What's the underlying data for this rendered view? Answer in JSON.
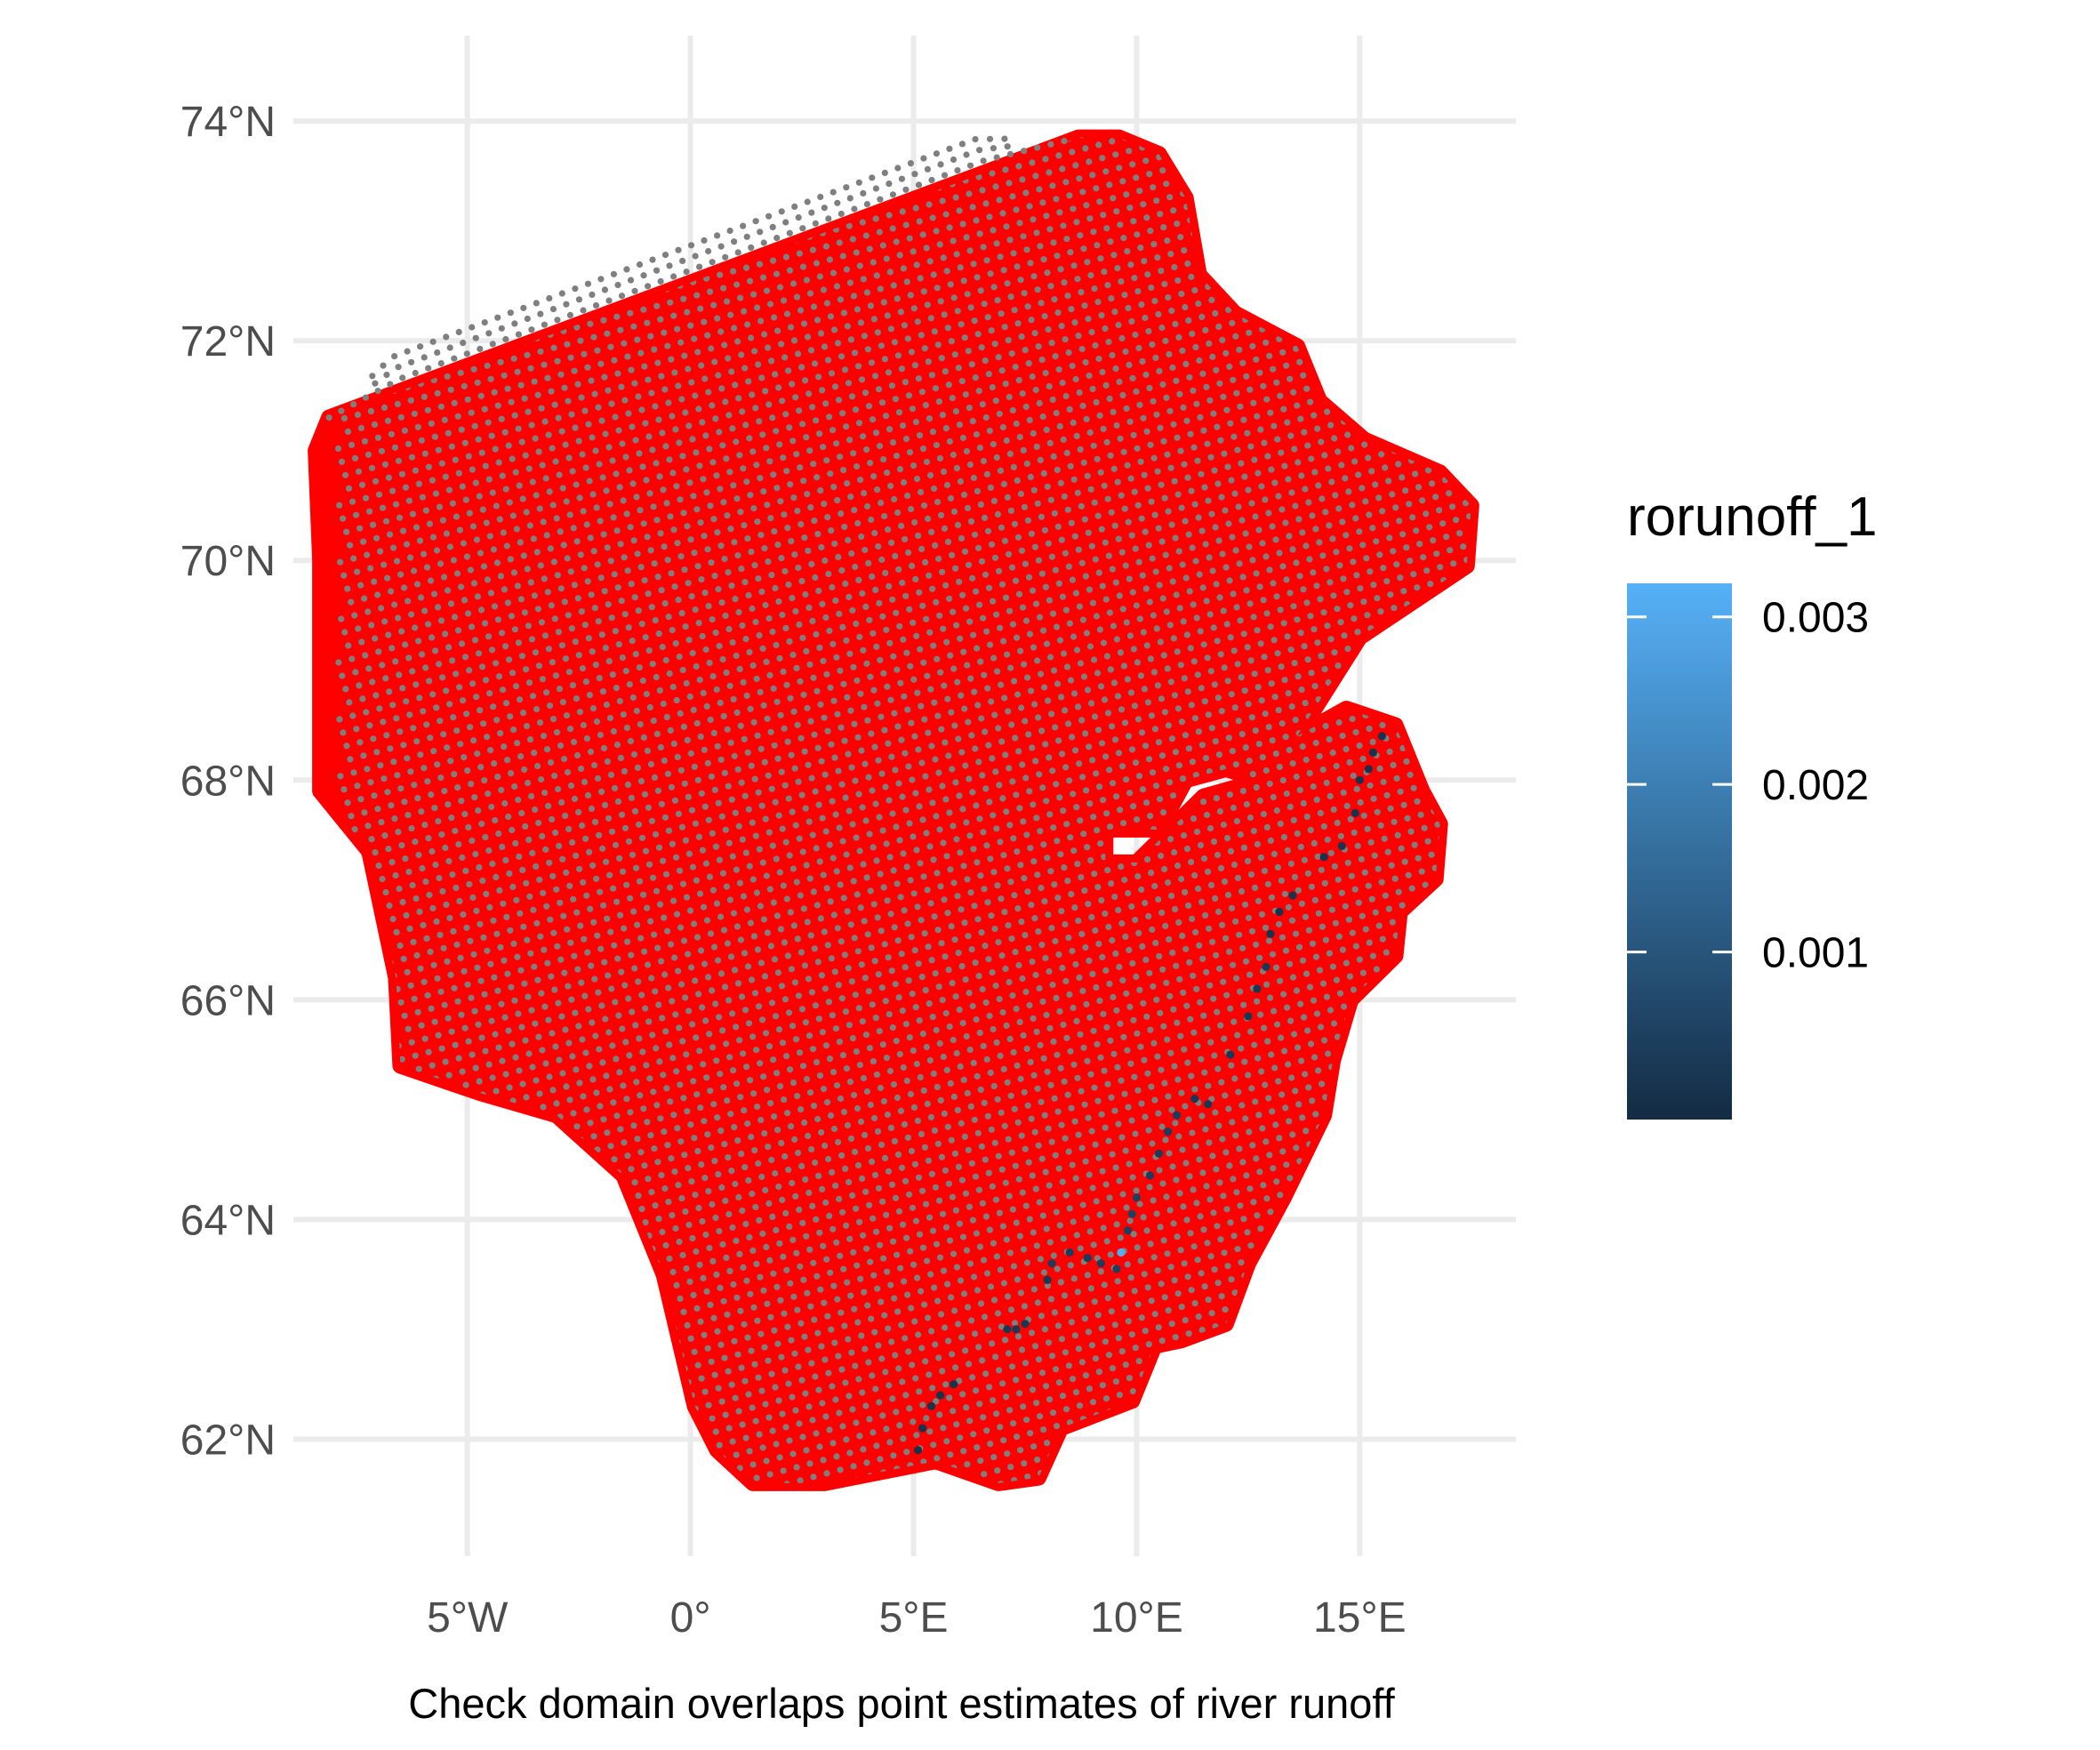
{
  "chart_data": {
    "type": "scatter",
    "xlabel": "Check domain overlaps point estimates of river runoff",
    "ylabel": "",
    "xlim": [
      -8.7,
      18.5
    ],
    "ylim": [
      61.0,
      74.6
    ],
    "x_ticks": [
      {
        "value": -5,
        "label": "5°W"
      },
      {
        "value": 0,
        "label": "0°"
      },
      {
        "value": 5,
        "label": "5°E"
      },
      {
        "value": 10,
        "label": "10°E"
      },
      {
        "value": 15,
        "label": "15°E"
      }
    ],
    "y_ticks": [
      {
        "value": 62,
        "label": "62°N"
      },
      {
        "value": 64,
        "label": "64°N"
      },
      {
        "value": 66,
        "label": "66°N"
      },
      {
        "value": 68,
        "label": "68°N"
      },
      {
        "value": 70,
        "label": "70°N"
      },
      {
        "value": 72,
        "label": "72°N"
      },
      {
        "value": 74,
        "label": "74°N"
      }
    ],
    "grid": true,
    "domain": {
      "fill": "#ff0000",
      "outline": [
        [
          -8.1,
          71.3
        ],
        [
          8.7,
          73.85
        ],
        [
          9.6,
          73.85
        ],
        [
          10.5,
          73.7
        ],
        [
          11.1,
          73.3
        ],
        [
          11.4,
          72.6
        ],
        [
          12.2,
          72.25
        ],
        [
          13.6,
          71.95
        ],
        [
          14.1,
          71.45
        ],
        [
          15.1,
          71.1
        ],
        [
          16.8,
          70.8
        ],
        [
          17.5,
          70.5
        ],
        [
          17.4,
          69.95
        ],
        [
          15.0,
          69.3
        ],
        [
          13.6,
          68.4
        ],
        [
          14.7,
          68.65
        ],
        [
          15.8,
          68.5
        ],
        [
          16.4,
          67.9
        ],
        [
          16.8,
          67.6
        ],
        [
          16.7,
          67.1
        ],
        [
          15.9,
          66.8
        ],
        [
          15.8,
          66.4
        ],
        [
          14.8,
          66.0
        ],
        [
          14.4,
          65.45
        ],
        [
          14.2,
          64.95
        ],
        [
          13.3,
          64.2
        ],
        [
          12.5,
          63.6
        ],
        [
          12.0,
          63.05
        ],
        [
          11.0,
          62.9
        ],
        [
          10.4,
          62.85
        ],
        [
          9.9,
          62.35
        ],
        [
          8.3,
          62.1
        ],
        [
          7.8,
          61.65
        ],
        [
          6.9,
          61.6
        ],
        [
          5.5,
          61.8
        ],
        [
          3.0,
          61.6
        ],
        [
          1.4,
          61.6
        ],
        [
          0.6,
          61.9
        ],
        [
          0.1,
          62.3
        ],
        [
          -0.6,
          63.5
        ],
        [
          -1.5,
          64.4
        ],
        [
          -3.0,
          64.95
        ],
        [
          -4.7,
          65.15
        ],
        [
          -6.5,
          65.4
        ],
        [
          -6.6,
          66.2
        ],
        [
          -7.2,
          67.35
        ],
        [
          -8.3,
          67.9
        ],
        [
          -8.3,
          70.0
        ],
        [
          -8.4,
          71.0
        ]
      ],
      "hole": [
        [
          9.3,
          67.55
        ],
        [
          10.5,
          67.55
        ],
        [
          11.1,
          68.0
        ],
        [
          12.0,
          68.1
        ],
        [
          12.8,
          68.0
        ],
        [
          11.5,
          67.85
        ],
        [
          10.0,
          67.25
        ],
        [
          9.3,
          67.25
        ]
      ]
    },
    "grid_points": {
      "color": "#7f7f7f",
      "spacing_lon": 0.35,
      "spacing_lat": 0.2,
      "rotation_deg": 15,
      "extra_band_northwest": true
    },
    "series": [
      {
        "name": "rorunoff_1",
        "points": [
          [
            5.1,
            61.9
          ],
          [
            5.2,
            62.1
          ],
          [
            5.4,
            62.3
          ],
          [
            5.6,
            62.4
          ],
          [
            5.9,
            62.5
          ],
          [
            7.1,
            63.0
          ],
          [
            7.3,
            63.0
          ],
          [
            7.5,
            63.05
          ],
          [
            8.0,
            63.45
          ],
          [
            8.1,
            63.6
          ],
          [
            8.5,
            63.7
          ],
          [
            8.9,
            63.65
          ],
          [
            9.2,
            63.6
          ],
          [
            9.55,
            63.55
          ],
          [
            9.65,
            63.7
          ],
          [
            9.8,
            63.9
          ],
          [
            9.9,
            64.05
          ],
          [
            10.0,
            64.2
          ],
          [
            10.3,
            64.4
          ],
          [
            10.5,
            64.6
          ],
          [
            10.7,
            64.8
          ],
          [
            10.9,
            64.95
          ],
          [
            11.3,
            65.1
          ],
          [
            11.6,
            65.05
          ],
          [
            12.1,
            65.5
          ],
          [
            12.5,
            65.85
          ],
          [
            12.7,
            66.1
          ],
          [
            12.9,
            66.3
          ],
          [
            13.0,
            66.6
          ],
          [
            13.2,
            66.8
          ],
          [
            13.5,
            66.95
          ],
          [
            14.2,
            67.3
          ],
          [
            14.6,
            67.4
          ],
          [
            14.9,
            67.7
          ],
          [
            15.0,
            68.0
          ],
          [
            15.2,
            68.1
          ],
          [
            15.3,
            68.25
          ],
          [
            15.5,
            68.4
          ]
        ],
        "values": [
          0.0002,
          0.0002,
          0.0002,
          0.0002,
          0.0002,
          0.0003,
          0.0003,
          0.0003,
          0.0003,
          0.0004,
          0.0004,
          0.0004,
          0.0004,
          0.0005,
          0.0031,
          0.0005,
          0.0005,
          0.0005,
          0.0004,
          0.0004,
          0.0004,
          0.0004,
          0.0003,
          0.0003,
          0.0003,
          0.0003,
          0.0003,
          0.0003,
          0.0002,
          0.0002,
          0.0002,
          0.0002,
          0.0002,
          0.0002,
          0.0002,
          0.0002,
          0.0002,
          0.0002
        ]
      }
    ],
    "legend": {
      "title": "rorunoff_1",
      "placement": "right",
      "range": [
        0.0,
        0.0032
      ],
      "colors": [
        "#132b43",
        "#56b1f7"
      ],
      "ticks": [
        {
          "value": 0.001,
          "label": "0.001"
        },
        {
          "value": 0.002,
          "label": "0.002"
        },
        {
          "value": 0.003,
          "label": "0.003"
        }
      ]
    }
  }
}
